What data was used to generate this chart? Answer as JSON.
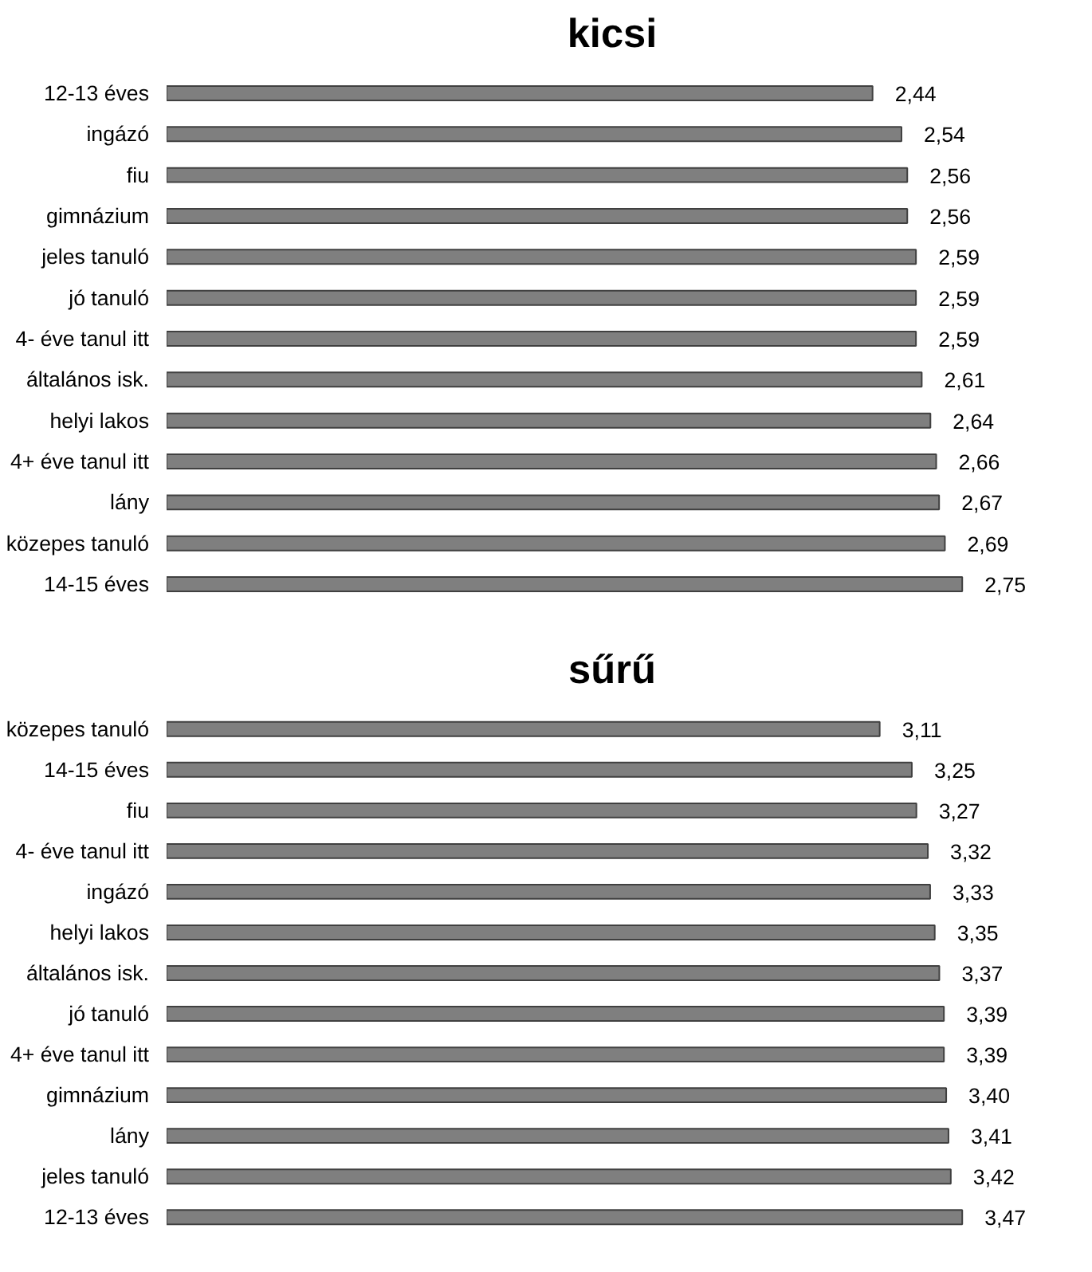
{
  "chart_data": [
    {
      "type": "bar",
      "orientation": "horizontal",
      "title": "kicsi",
      "categories": [
        "12-13 éves",
        "ingázó",
        "fiu",
        "gimnázium",
        "jeles tanuló",
        "jó tanuló",
        "4- éve tanul itt",
        "általános isk.",
        "helyi lakos",
        "4+ éve tanul itt",
        "lány",
        "közepes tanuló",
        "14-15 éves"
      ],
      "values": [
        2.44,
        2.54,
        2.56,
        2.56,
        2.59,
        2.59,
        2.59,
        2.61,
        2.64,
        2.66,
        2.67,
        2.69,
        2.75
      ],
      "color": "#7f7f7f",
      "value_labels": [
        "2,44",
        "2,54",
        "2,56",
        "2,56",
        "2,59",
        "2,59",
        "2,59",
        "2,61",
        "2,64",
        "2,66",
        "2,67",
        "2,69",
        "2,75"
      ],
      "grid": false,
      "tick_labels": "y"
    },
    {
      "type": "bar",
      "orientation": "horizontal",
      "title": "sűrű",
      "categories": [
        "közepes tanuló",
        "14-15 éves",
        "fiu",
        "4- éve tanul itt",
        "ingázó",
        "helyi lakos",
        "általános isk.",
        "jó tanuló",
        "4+ éve tanul itt",
        "gimnázium",
        "lány",
        "jeles tanuló",
        "12-13 éves"
      ],
      "values": [
        3.11,
        3.25,
        3.27,
        3.32,
        3.33,
        3.35,
        3.37,
        3.39,
        3.39,
        3.4,
        3.41,
        3.42,
        3.47
      ],
      "color": "#7f7f7f",
      "value_labels": [
        "3,11",
        "3,25",
        "3,27",
        "3,32",
        "3,33",
        "3,35",
        "3,37",
        "3,39",
        "3,39",
        "3,40",
        "3,41",
        "3,42",
        "3,47"
      ],
      "grid": false,
      "tick_labels": "y"
    }
  ]
}
